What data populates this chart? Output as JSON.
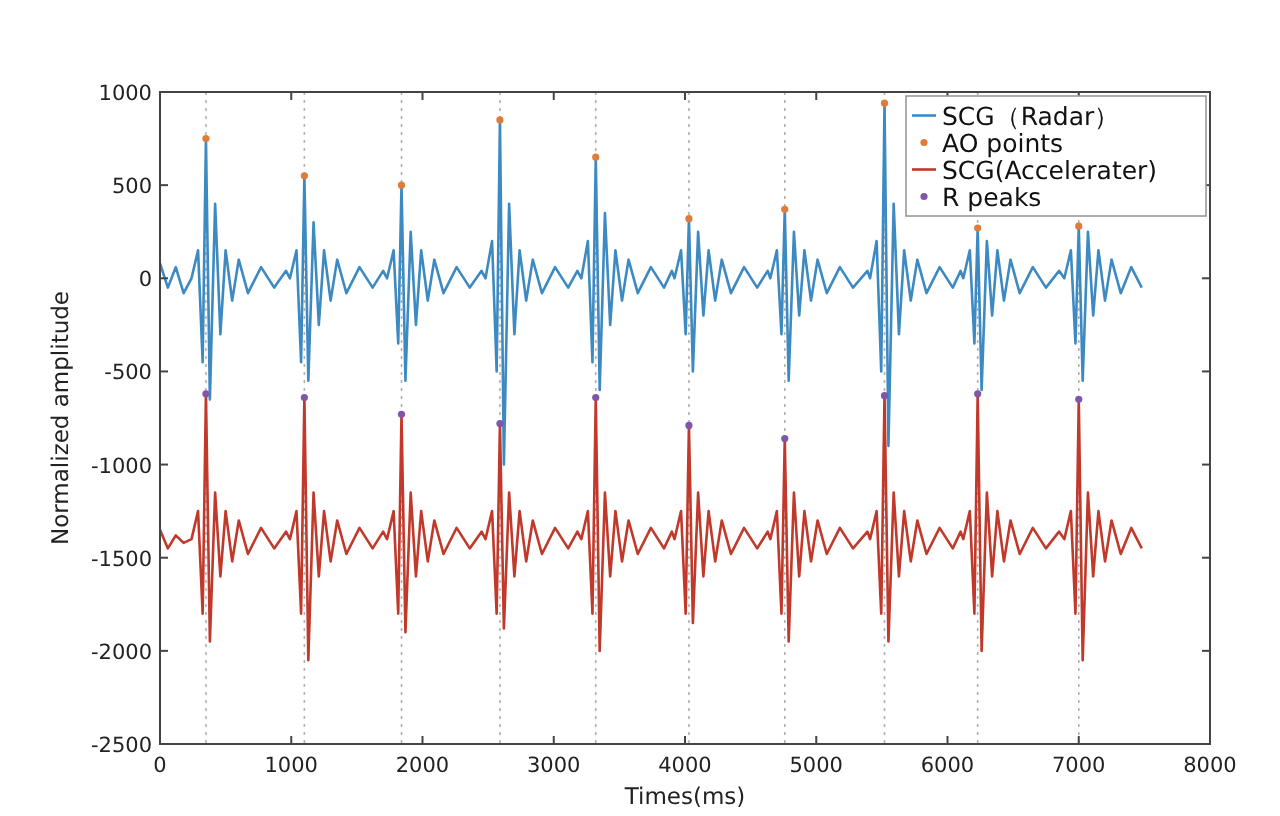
{
  "chart_data": {
    "type": "line",
    "xlabel": "Times(ms)",
    "ylabel": "Normalized amplitude",
    "xlim": [
      0,
      8000
    ],
    "xticks": [
      0,
      1000,
      2000,
      3000,
      4000,
      5000,
      6000,
      7000,
      8000
    ],
    "ylim": [
      -2500,
      1000
    ],
    "yticks": [
      -2500,
      -2000,
      -1500,
      -1000,
      -500,
      0,
      500,
      1000
    ],
    "grid": false,
    "legend": "top right",
    "ref_lines": [
      {
        "axis": "x",
        "value": 350,
        "line_style": "dotted",
        "color": "#b0b0b0"
      },
      {
        "axis": "x",
        "value": 1100,
        "line_style": "dotted",
        "color": "#b0b0b0"
      },
      {
        "axis": "x",
        "value": 1840,
        "line_style": "dotted",
        "color": "#b0b0b0"
      },
      {
        "axis": "x",
        "value": 2590,
        "line_style": "dotted",
        "color": "#b0b0b0"
      },
      {
        "axis": "x",
        "value": 3320,
        "line_style": "dotted",
        "color": "#b0b0b0"
      },
      {
        "axis": "x",
        "value": 4030,
        "line_style": "dotted",
        "color": "#b0b0b0"
      },
      {
        "axis": "x",
        "value": 4760,
        "line_style": "dotted",
        "color": "#b0b0b0"
      },
      {
        "axis": "x",
        "value": 5520,
        "line_style": "dotted",
        "color": "#b0b0b0"
      },
      {
        "axis": "x",
        "value": 6230,
        "line_style": "dotted",
        "color": "#b0b0b0"
      },
      {
        "axis": "x",
        "value": 7000,
        "line_style": "dotted",
        "color": "#b0b0b0"
      }
    ],
    "series": [
      {
        "name": "SCG（Radar）",
        "color": "#3d8ac2",
        "line_style": "solid",
        "x": [
          0,
          60,
          120,
          180,
          240,
          290,
          325,
          350,
          380,
          420,
          460,
          500,
          550,
          600,
          670,
          770,
          870,
          960,
          990,
          1040,
          1075,
          1100,
          1130,
          1170,
          1210,
          1250,
          1300,
          1350,
          1420,
          1520,
          1620,
          1700,
          1730,
          1780,
          1815,
          1840,
          1870,
          1910,
          1950,
          1990,
          2040,
          2090,
          2160,
          2260,
          2360,
          2450,
          2480,
          2530,
          2565,
          2590,
          2620,
          2660,
          2700,
          2740,
          2790,
          2840,
          2910,
          3010,
          3110,
          3180,
          3210,
          3260,
          3295,
          3320,
          3350,
          3390,
          3430,
          3470,
          3520,
          3570,
          3640,
          3740,
          3840,
          3900,
          3920,
          3970,
          4005,
          4030,
          4060,
          4100,
          4140,
          4180,
          4230,
          4280,
          4350,
          4450,
          4550,
          4630,
          4650,
          4700,
          4735,
          4760,
          4790,
          4830,
          4870,
          4910,
          4960,
          5010,
          5080,
          5180,
          5280,
          5390,
          5410,
          5460,
          5495,
          5520,
          5550,
          5590,
          5630,
          5670,
          5720,
          5770,
          5840,
          5940,
          6040,
          6100,
          6120,
          6170,
          6205,
          6230,
          6260,
          6300,
          6340,
          6380,
          6430,
          6480,
          6550,
          6650,
          6750,
          6850,
          6890,
          6940,
          6975,
          7000,
          7030,
          7070,
          7110,
          7150,
          7200,
          7250,
          7320,
          7400,
          7480
        ],
        "values": [
          80,
          -50,
          60,
          -80,
          0,
          150,
          -450,
          750,
          -650,
          400,
          -300,
          150,
          -120,
          100,
          -80,
          60,
          -50,
          40,
          0,
          150,
          -450,
          550,
          -550,
          300,
          -250,
          150,
          -120,
          100,
          -80,
          60,
          -50,
          40,
          0,
          150,
          -350,
          500,
          -550,
          250,
          -250,
          150,
          -120,
          100,
          -80,
          60,
          -50,
          40,
          0,
          200,
          -500,
          850,
          -1000,
          400,
          -300,
          150,
          -120,
          100,
          -80,
          60,
          -50,
          40,
          0,
          200,
          -450,
          650,
          -600,
          350,
          -250,
          150,
          -120,
          100,
          -80,
          60,
          -50,
          40,
          0,
          150,
          -300,
          320,
          -500,
          250,
          -200,
          150,
          -120,
          100,
          -80,
          60,
          -50,
          40,
          0,
          150,
          -300,
          370,
          -550,
          250,
          -200,
          150,
          -120,
          100,
          -80,
          60,
          -50,
          40,
          0,
          200,
          -500,
          940,
          -900,
          400,
          -300,
          150,
          -120,
          100,
          -80,
          60,
          -50,
          40,
          0,
          150,
          -350,
          270,
          -600,
          200,
          -200,
          150,
          -120,
          100,
          -80,
          60,
          -50,
          40,
          0,
          150,
          -350,
          280,
          -550,
          250,
          -200,
          150,
          -120,
          100,
          -80,
          60,
          -50
        ]
      },
      {
        "name": "AO points",
        "type": "scatter",
        "marker": "circle",
        "color": "#e07b39",
        "x": [
          350,
          1100,
          1840,
          2590,
          3320,
          4030,
          4760,
          5520,
          6230,
          7000
        ],
        "values": [
          750,
          550,
          500,
          850,
          650,
          320,
          370,
          940,
          270,
          280
        ]
      },
      {
        "name": "SCG(Accelerater)",
        "color": "#c0392b",
        "line_style": "solid",
        "x": [
          0,
          60,
          120,
          180,
          240,
          290,
          325,
          350,
          380,
          420,
          460,
          500,
          550,
          600,
          670,
          770,
          870,
          960,
          990,
          1040,
          1075,
          1100,
          1130,
          1170,
          1210,
          1250,
          1300,
          1350,
          1420,
          1520,
          1620,
          1700,
          1730,
          1780,
          1815,
          1840,
          1870,
          1910,
          1950,
          1990,
          2040,
          2090,
          2160,
          2260,
          2360,
          2450,
          2480,
          2530,
          2565,
          2590,
          2620,
          2660,
          2700,
          2740,
          2790,
          2840,
          2910,
          3010,
          3110,
          3180,
          3210,
          3260,
          3295,
          3320,
          3350,
          3390,
          3430,
          3470,
          3520,
          3570,
          3640,
          3740,
          3840,
          3900,
          3920,
          3970,
          4005,
          4030,
          4060,
          4100,
          4140,
          4180,
          4230,
          4280,
          4350,
          4450,
          4550,
          4630,
          4650,
          4700,
          4735,
          4760,
          4790,
          4830,
          4870,
          4910,
          4960,
          5010,
          5080,
          5180,
          5280,
          5390,
          5410,
          5460,
          5495,
          5520,
          5550,
          5590,
          5630,
          5670,
          5720,
          5770,
          5840,
          5940,
          6040,
          6100,
          6120,
          6170,
          6205,
          6230,
          6260,
          6300,
          6340,
          6380,
          6430,
          6480,
          6550,
          6650,
          6750,
          6850,
          6890,
          6940,
          6975,
          7000,
          7030,
          7070,
          7110,
          7150,
          7200,
          7250,
          7320,
          7400,
          7480
        ],
        "values": [
          -1350,
          -1450,
          -1380,
          -1420,
          -1400,
          -1250,
          -1800,
          -620,
          -1950,
          -1150,
          -1600,
          -1250,
          -1520,
          -1300,
          -1480,
          -1340,
          -1450,
          -1360,
          -1400,
          -1250,
          -1800,
          -640,
          -2050,
          -1150,
          -1600,
          -1250,
          -1520,
          -1300,
          -1480,
          -1340,
          -1450,
          -1360,
          -1400,
          -1250,
          -1800,
          -730,
          -1900,
          -1150,
          -1600,
          -1250,
          -1520,
          -1300,
          -1480,
          -1340,
          -1450,
          -1360,
          -1400,
          -1250,
          -1800,
          -780,
          -1880,
          -1150,
          -1600,
          -1250,
          -1520,
          -1300,
          -1480,
          -1340,
          -1450,
          -1360,
          -1400,
          -1250,
          -1800,
          -640,
          -2000,
          -1150,
          -1600,
          -1250,
          -1520,
          -1300,
          -1480,
          -1340,
          -1450,
          -1360,
          -1400,
          -1250,
          -1800,
          -790,
          -1850,
          -1150,
          -1600,
          -1250,
          -1520,
          -1300,
          -1480,
          -1340,
          -1450,
          -1360,
          -1400,
          -1250,
          -1800,
          -860,
          -1950,
          -1150,
          -1600,
          -1250,
          -1520,
          -1300,
          -1480,
          -1340,
          -1450,
          -1360,
          -1400,
          -1250,
          -1800,
          -630,
          -1950,
          -1150,
          -1600,
          -1250,
          -1520,
          -1300,
          -1480,
          -1340,
          -1450,
          -1360,
          -1400,
          -1250,
          -1800,
          -620,
          -2000,
          -1150,
          -1600,
          -1250,
          -1520,
          -1300,
          -1480,
          -1340,
          -1450,
          -1360,
          -1400,
          -1250,
          -1800,
          -650,
          -2050,
          -1150,
          -1600,
          -1250,
          -1520,
          -1300,
          -1480,
          -1340,
          -1450
        ]
      },
      {
        "name": "R peaks",
        "type": "scatter",
        "marker": "circle",
        "color": "#7e57a8",
        "x": [
          350,
          1100,
          1840,
          2590,
          3320,
          4030,
          4760,
          5520,
          6230,
          7000
        ],
        "values": [
          -620,
          -640,
          -730,
          -780,
          -640,
          -790,
          -860,
          -630,
          -620,
          -650
        ]
      }
    ]
  }
}
